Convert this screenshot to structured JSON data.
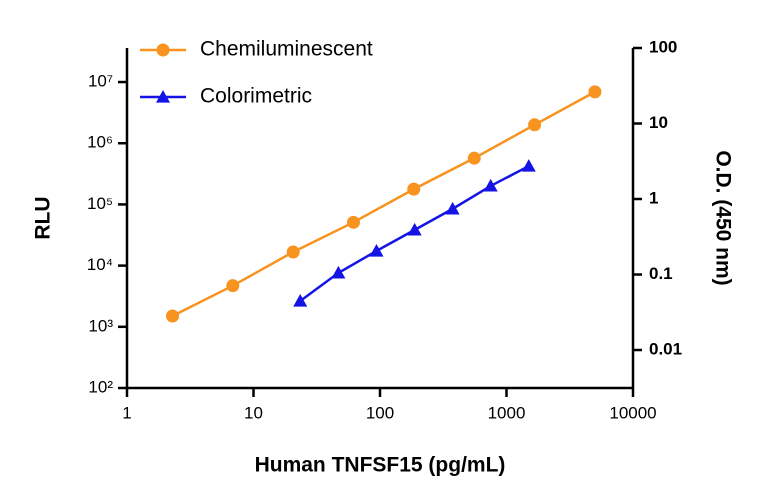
{
  "chart_data": {
    "type": "line",
    "x_label": "Human TNFSF15 (pg/mL)",
    "y_label": "RLU",
    "y2_label": "O.D. (450 nm)",
    "xlog": true,
    "ylog": true,
    "y2log": true,
    "xlim": [
      1,
      10000
    ],
    "xticks": [
      1,
      10,
      100,
      1000,
      10000
    ],
    "ylim": [
      100,
      36000000
    ],
    "yticks": [
      {
        "value": 100,
        "label": "10²"
      },
      {
        "value": 1000,
        "label": "10³"
      },
      {
        "value": 10000,
        "label": "10⁴"
      },
      {
        "value": 100000,
        "label": "10⁵"
      },
      {
        "value": 1000000,
        "label": "10⁶"
      },
      {
        "value": 10000000,
        "label": "10⁷"
      }
    ],
    "y2lim": [
      0.00314,
      100
    ],
    "y2ticks": [
      0.01,
      0.1,
      1,
      10,
      100
    ],
    "legend": "upper left",
    "series": [
      {
        "name": "Chemiluminescent",
        "color": "#f7931e",
        "marker": "circle",
        "x": [
          2.29,
          6.86,
          20.6,
          61.7,
          185,
          556,
          1667,
          5000
        ],
        "values": [
          1500,
          4700,
          16700,
          51000,
          178000,
          570000,
          2000000,
          6900000
        ]
      },
      {
        "name": "Colorimetric",
        "color": "#1414e6",
        "marker": "triangle",
        "axis": "y2",
        "x": [
          23.4,
          46.9,
          93.8,
          188,
          375,
          750,
          1500
        ],
        "values": [
          0.0446,
          0.105,
          0.205,
          0.39,
          0.74,
          1.49,
          2.73
        ]
      }
    ]
  }
}
